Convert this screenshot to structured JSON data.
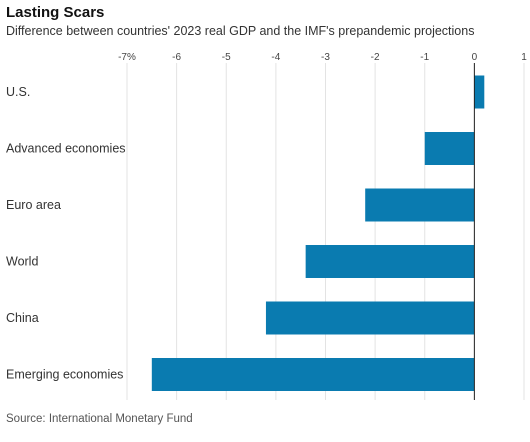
{
  "chart_data": {
    "type": "bar",
    "orientation": "horizontal",
    "title": "Lasting Scars",
    "subtitle": "Difference between countries' 2023 real GDP and the IMF's prepandemic projections",
    "source": "Source: International Monetary Fund",
    "categories": [
      "U.S.",
      "Advanced economies",
      "Euro area",
      "World",
      "China",
      "Emerging economies"
    ],
    "values": [
      0.2,
      -1.0,
      -2.2,
      -3.4,
      -4.2,
      -6.5
    ],
    "xlim": [
      -7,
      1
    ],
    "x_ticks": [
      -7,
      -6,
      -5,
      -4,
      -3,
      -2,
      -1,
      0,
      1
    ],
    "x_tick_labels": [
      "-7%",
      "-6",
      "-5",
      "-4",
      "-3",
      "-2",
      "-1",
      "0",
      "1"
    ],
    "grid": true,
    "bar_color": "#0a7bb0"
  }
}
